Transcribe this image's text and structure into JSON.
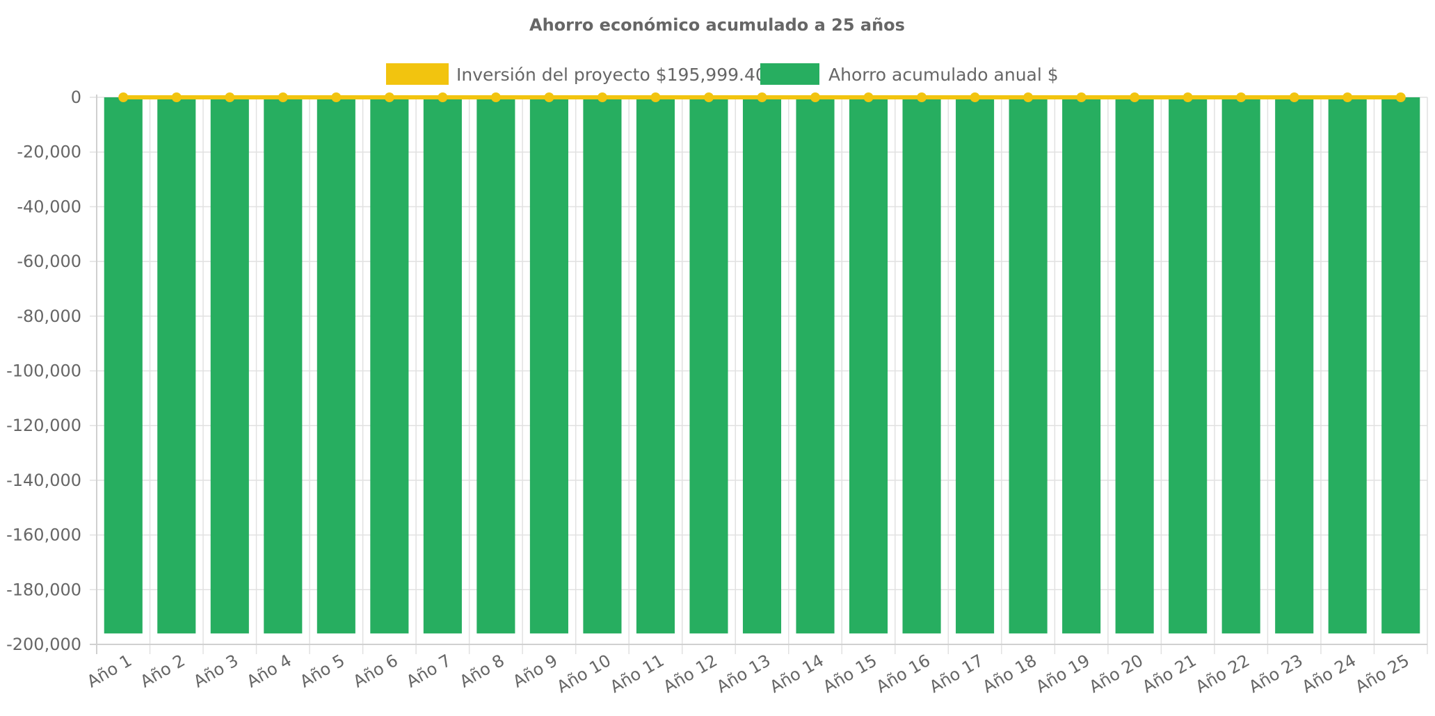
{
  "chart_data": {
    "type": "bar",
    "title": "Ahorro económico acumulado a 25 años",
    "categories": [
      "Año 1",
      "Año 2",
      "Año 3",
      "Año 4",
      "Año 5",
      "Año 6",
      "Año 7",
      "Año 8",
      "Año 9",
      "Año 10",
      "Año 11",
      "Año 12",
      "Año 13",
      "Año 14",
      "Año 15",
      "Año 16",
      "Año 17",
      "Año 18",
      "Año 19",
      "Año 20",
      "Año 21",
      "Año 22",
      "Año 23",
      "Año 24",
      "Año 25"
    ],
    "series": [
      {
        "name": "Inversión del proyecto $195,999.40",
        "type": "line",
        "color": "#f2c40f",
        "values": [
          0,
          0,
          0,
          0,
          0,
          0,
          0,
          0,
          0,
          0,
          0,
          0,
          0,
          0,
          0,
          0,
          0,
          0,
          0,
          0,
          0,
          0,
          0,
          0,
          0
        ]
      },
      {
        "name": "Ahorro acumulado anual $",
        "type": "bar",
        "color": "#27ae60",
        "values": [
          -195999.4,
          -195999.4,
          -195999.4,
          -195999.4,
          -195999.4,
          -195999.4,
          -195999.4,
          -195999.4,
          -195999.4,
          -195999.4,
          -195999.4,
          -195999.4,
          -195999.4,
          -195999.4,
          -195999.4,
          -195999.4,
          -195999.4,
          -195999.4,
          -195999.4,
          -195999.4,
          -195999.4,
          -195999.4,
          -195999.4,
          -195999.4,
          -195999.4
        ]
      }
    ],
    "ylim": [
      -200000,
      0
    ],
    "yticks": [
      0,
      -20000,
      -40000,
      -60000,
      -80000,
      -100000,
      -120000,
      -140000,
      -160000,
      -180000,
      -200000
    ],
    "ytick_labels": [
      "0",
      "-20,000",
      "-40,000",
      "-60,000",
      "-80,000",
      "-100,000",
      "-120,000",
      "-140,000",
      "-160,000",
      "-180,000",
      "-200,000"
    ],
    "xlabel": "",
    "ylabel": "",
    "grid": true,
    "legend_position": "top-center"
  }
}
